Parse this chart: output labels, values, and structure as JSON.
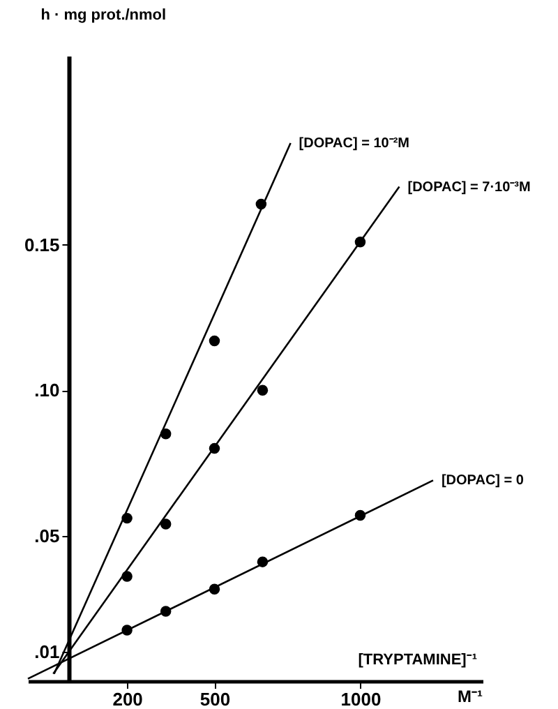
{
  "chart_data": {
    "type": "scatter",
    "ylabel": "h · mg prot./nmol",
    "xlabel": "[TRYPTAMINE]⁻¹",
    "annotations": [
      "M⁻¹"
    ],
    "xlim": [
      -140,
      1420
    ],
    "ylim": [
      0,
      0.215
    ],
    "xticks": [
      200,
      500,
      1000
    ],
    "yticks": [
      {
        "value": 0.01,
        "label": ".01"
      },
      {
        "value": 0.05,
        "label": ".05"
      },
      {
        "value": 0.1,
        "label": ".10"
      },
      {
        "value": 0.15,
        "label": "0.15"
      }
    ],
    "grid": false,
    "marker": "circle",
    "series": [
      {
        "name": "[DOPAC] = 0",
        "color": "#000000",
        "x": [
          200,
          333,
          500,
          665,
          1000
        ],
        "values": [
          0.0175,
          0.024,
          0.0316,
          0.041,
          0.057
        ]
      },
      {
        "name": "[DOPAC] = 7·10⁻³M",
        "color": "#000000",
        "x": [
          200,
          333,
          500,
          665,
          1000
        ],
        "values": [
          0.036,
          0.054,
          0.08,
          0.1,
          0.151
        ]
      },
      {
        "name": "[DOPAC] = 10⁻²M",
        "color": "#000000",
        "x": [
          200,
          333,
          500,
          660
        ],
        "values": [
          0.056,
          0.085,
          0.117,
          0.164
        ]
      },
      {
        "type": "line",
        "marker": "none",
        "color": "#000000",
        "line_style": "solid",
        "x": [
          -140,
          1250
        ],
        "values": [
          0.0008,
          0.069
        ]
      },
      {
        "type": "line",
        "marker": "none",
        "color": "#000000",
        "line_style": "solid",
        "x": [
          -53,
          1134
        ],
        "values": [
          0.0025,
          0.17
        ]
      },
      {
        "type": "line",
        "marker": "none",
        "color": "#000000",
        "line_style": "solid",
        "x": [
          -50,
          761
        ],
        "values": [
          0.0025,
          0.185
        ]
      }
    ]
  }
}
